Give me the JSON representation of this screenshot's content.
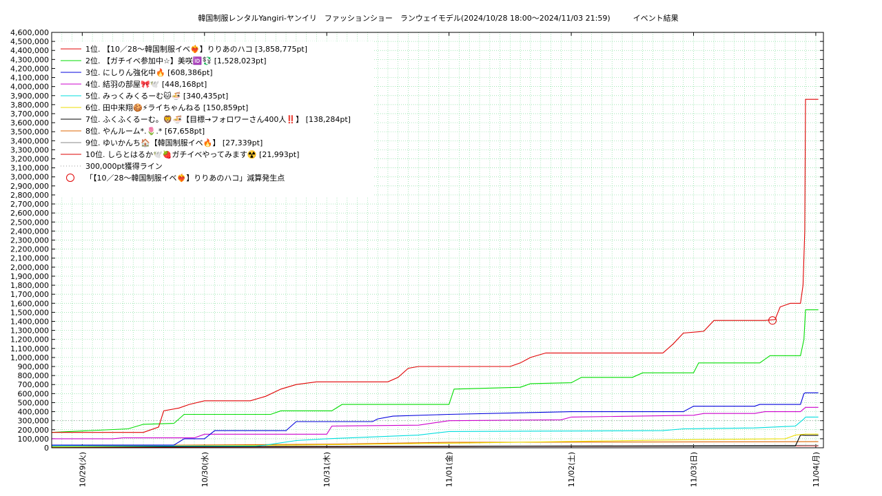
{
  "chart_data": {
    "type": "line",
    "title": "韓国制服レンタルYangiri-ヤンイリ　ファッションショー　ランウェイモデル(2024/10/28 18:00〜2024/11/03 21:59)　　　イベント結果",
    "xlabel": "",
    "ylabel": "",
    "ylim": [
      0,
      4600000
    ],
    "xlim": [
      "2024-10-28 18:00",
      "2024-11-04 01:30"
    ],
    "y_ticks": [
      0,
      100000,
      200000,
      300000,
      400000,
      500000,
      600000,
      700000,
      800000,
      900000,
      1000000,
      1100000,
      1200000,
      1300000,
      1400000,
      1500000,
      1600000,
      1700000,
      1800000,
      1900000,
      2000000,
      2100000,
      2200000,
      2300000,
      2400000,
      2500000,
      2600000,
      2700000,
      2800000,
      2900000,
      3000000,
      3100000,
      3200000,
      3300000,
      3400000,
      3500000,
      3600000,
      3700000,
      3800000,
      3900000,
      4000000,
      4100000,
      4200000,
      4300000,
      4400000,
      4500000,
      4600000
    ],
    "x_ticks": [
      {
        "t": "2024-10-29 00:00",
        "label": "10/29(火)"
      },
      {
        "t": "2024-10-30 00:00",
        "label": "10/30(水)"
      },
      {
        "t": "2024-10-31 00:00",
        "label": "10/31(木)"
      },
      {
        "t": "2024-11-01 00:00",
        "label": "11/01(金)"
      },
      {
        "t": "2024-11-02 00:00",
        "label": "11/02(土)"
      },
      {
        "t": "2024-11-03 00:00",
        "label": "11/03(日)"
      },
      {
        "t": "2024-11-04 00:00",
        "label": "11/04(月)"
      }
    ],
    "grid": true,
    "grid_color": "#7fdd9a",
    "legend_position": "top-left",
    "series": [
      {
        "name": "1位. 【10／28〜韓国制服イベ❤️‍🔥】りりあのハコ [3,858,775pt]",
        "color": "#e00000",
        "points": [
          [
            "2024-10-28 18:00",
            170000
          ],
          [
            "2024-10-29 12:00",
            170000
          ],
          [
            "2024-10-29 15:00",
            230000
          ],
          [
            "2024-10-29 16:00",
            410000
          ],
          [
            "2024-10-29 19:00",
            440000
          ],
          [
            "2024-10-29 21:00",
            480000
          ],
          [
            "2024-10-30 00:00",
            520000
          ],
          [
            "2024-10-30 09:00",
            520000
          ],
          [
            "2024-10-30 12:00",
            570000
          ],
          [
            "2024-10-30 15:00",
            650000
          ],
          [
            "2024-10-30 18:00",
            700000
          ],
          [
            "2024-10-30 22:00",
            730000
          ],
          [
            "2024-10-31 12:00",
            730000
          ],
          [
            "2024-10-31 14:00",
            780000
          ],
          [
            "2024-10-31 16:00",
            880000
          ],
          [
            "2024-10-31 18:00",
            900000
          ],
          [
            "2024-11-01 12:00",
            900000
          ],
          [
            "2024-11-01 14:00",
            940000
          ],
          [
            "2024-11-01 16:00",
            1000000
          ],
          [
            "2024-11-01 19:00",
            1050000
          ],
          [
            "2024-11-02 18:00",
            1050000
          ],
          [
            "2024-11-02 20:00",
            1150000
          ],
          [
            "2024-11-02 22:00",
            1270000
          ],
          [
            "2024-11-03 02:00",
            1290000
          ],
          [
            "2024-11-03 04:00",
            1410000
          ],
          [
            "2024-11-03 14:00",
            1410000
          ],
          [
            "2024-11-03 16:00",
            1420000
          ],
          [
            "2024-11-03 17:00",
            1560000
          ],
          [
            "2024-11-03 19:00",
            1600000
          ],
          [
            "2024-11-03 21:00",
            1600000
          ],
          [
            "2024-11-03 21:30",
            1800000
          ],
          [
            "2024-11-03 21:50",
            2400000
          ],
          [
            "2024-11-03 21:59",
            3858775
          ],
          [
            "2024-11-04 00:30",
            3858775
          ]
        ]
      },
      {
        "name": "2位. 【ガチイベ参加中☆】美咲🆔💱 [1,528,023pt]",
        "color": "#00dd00",
        "points": [
          [
            "2024-10-28 18:00",
            170000
          ],
          [
            "2024-10-29 09:00",
            210000
          ],
          [
            "2024-10-29 12:00",
            260000
          ],
          [
            "2024-10-29 18:00",
            270000
          ],
          [
            "2024-10-29 20:00",
            370000
          ],
          [
            "2024-10-30 13:00",
            370000
          ],
          [
            "2024-10-30 15:00",
            410000
          ],
          [
            "2024-10-31 01:00",
            410000
          ],
          [
            "2024-10-31 03:00",
            480000
          ],
          [
            "2024-11-01 00:00",
            480000
          ],
          [
            "2024-11-01 01:00",
            650000
          ],
          [
            "2024-11-01 14:00",
            670000
          ],
          [
            "2024-11-01 16:00",
            710000
          ],
          [
            "2024-11-02 00:00",
            720000
          ],
          [
            "2024-11-02 02:00",
            780000
          ],
          [
            "2024-11-02 12:00",
            780000
          ],
          [
            "2024-11-02 14:00",
            830000
          ],
          [
            "2024-11-03 00:00",
            830000
          ],
          [
            "2024-11-03 01:00",
            940000
          ],
          [
            "2024-11-03 13:00",
            940000
          ],
          [
            "2024-11-03 15:00",
            1020000
          ],
          [
            "2024-11-03 21:00",
            1020000
          ],
          [
            "2024-11-03 21:40",
            1200000
          ],
          [
            "2024-11-03 21:59",
            1528023
          ],
          [
            "2024-11-04 00:30",
            1528023
          ]
        ]
      },
      {
        "name": "3位. にしりん強化中🔥 [608,386pt]",
        "color": "#0000dd",
        "points": [
          [
            "2024-10-28 18:00",
            30000
          ],
          [
            "2024-10-29 18:00",
            30000
          ],
          [
            "2024-10-29 20:00",
            100000
          ],
          [
            "2024-10-30 00:00",
            100000
          ],
          [
            "2024-10-30 02:00",
            190000
          ],
          [
            "2024-10-30 16:00",
            190000
          ],
          [
            "2024-10-30 18:00",
            290000
          ],
          [
            "2024-10-31 09:00",
            290000
          ],
          [
            "2024-10-31 10:00",
            320000
          ],
          [
            "2024-10-31 13:00",
            350000
          ],
          [
            "2024-11-01 00:00",
            370000
          ],
          [
            "2024-11-02 00:00",
            400000
          ],
          [
            "2024-11-02 22:00",
            400000
          ],
          [
            "2024-11-03 00:00",
            460000
          ],
          [
            "2024-11-03 12:00",
            460000
          ],
          [
            "2024-11-03 13:00",
            480000
          ],
          [
            "2024-11-03 21:00",
            480000
          ],
          [
            "2024-11-03 21:40",
            600000
          ],
          [
            "2024-11-03 21:59",
            608386
          ],
          [
            "2024-11-04 00:30",
            608386
          ]
        ]
      },
      {
        "name": "4位. 結羽の部屋🎀🕊️ [448,168pt]",
        "color": "#cc00cc",
        "points": [
          [
            "2024-10-28 18:00",
            100000
          ],
          [
            "2024-10-29 06:00",
            100000
          ],
          [
            "2024-10-29 08:00",
            110000
          ],
          [
            "2024-10-29 22:00",
            110000
          ],
          [
            "2024-10-30 00:00",
            150000
          ],
          [
            "2024-10-31 00:00",
            150000
          ],
          [
            "2024-10-31 01:00",
            240000
          ],
          [
            "2024-10-31 18:00",
            250000
          ],
          [
            "2024-11-01 00:00",
            300000
          ],
          [
            "2024-11-01 22:00",
            310000
          ],
          [
            "2024-11-02 00:00",
            340000
          ],
          [
            "2024-11-03 00:00",
            360000
          ],
          [
            "2024-11-03 02:00",
            380000
          ],
          [
            "2024-11-03 12:00",
            380000
          ],
          [
            "2024-11-03 14:00",
            400000
          ],
          [
            "2024-11-03 21:00",
            400000
          ],
          [
            "2024-11-03 21:59",
            448168
          ],
          [
            "2024-11-04 00:30",
            448168
          ]
        ]
      },
      {
        "name": "5位. みっくみくるーむ🐱🍜 [340,435pt]",
        "color": "#00dddd",
        "points": [
          [
            "2024-10-28 18:00",
            20000
          ],
          [
            "2024-10-30 10:00",
            20000
          ],
          [
            "2024-10-30 12:00",
            30000
          ],
          [
            "2024-10-30 18:00",
            80000
          ],
          [
            "2024-10-31 00:00",
            100000
          ],
          [
            "2024-10-31 18:00",
            140000
          ],
          [
            "2024-11-01 00:00",
            180000
          ],
          [
            "2024-11-02 18:00",
            190000
          ],
          [
            "2024-11-02 22:00",
            210000
          ],
          [
            "2024-11-03 12:00",
            220000
          ],
          [
            "2024-11-03 20:00",
            240000
          ],
          [
            "2024-11-03 21:40",
            320000
          ],
          [
            "2024-11-03 21:59",
            340435
          ],
          [
            "2024-11-04 00:30",
            340435
          ]
        ]
      },
      {
        "name": "6位. 田中来翔🍪⚡ライちゃんねる [150,859pt]",
        "color": "#eedd00",
        "points": [
          [
            "2024-10-28 18:00",
            10000
          ],
          [
            "2024-10-30 18:00",
            30000
          ],
          [
            "2024-11-01 00:00",
            50000
          ],
          [
            "2024-11-02 00:00",
            70000
          ],
          [
            "2024-11-03 00:00",
            90000
          ],
          [
            "2024-11-03 18:00",
            100000
          ],
          [
            "2024-11-03 20:00",
            140000
          ],
          [
            "2024-11-03 21:59",
            150859
          ],
          [
            "2024-11-04 00:30",
            150859
          ]
        ]
      },
      {
        "name": "7位. ふくふくるーむ。🦁🍜【目標→フォロワーさん400人‼️】 [138,284pt]",
        "color": "#000000",
        "points": [
          [
            "2024-10-28 18:00",
            10000
          ],
          [
            "2024-11-03 20:00",
            20000
          ],
          [
            "2024-11-03 21:00",
            140000
          ],
          [
            "2024-11-03 21:59",
            138284
          ],
          [
            "2024-11-04 00:30",
            138284
          ]
        ]
      },
      {
        "name": "8位. やんルーム*.🌷.* [67,658pt]",
        "color": "#dd6600",
        "points": [
          [
            "2024-10-28 18:00",
            20000
          ],
          [
            "2024-10-31 00:00",
            40000
          ],
          [
            "2024-11-01 00:00",
            60000
          ],
          [
            "2024-11-04 00:30",
            67658
          ]
        ]
      },
      {
        "name": "9位. ゆいかんち🏠【韓国制服イベ🔥】 [27,339pt]",
        "color": "#888888",
        "points": [
          [
            "2024-10-28 18:00",
            10000
          ],
          [
            "2024-11-03 21:59",
            27339
          ],
          [
            "2024-11-04 00:30",
            27339
          ]
        ]
      },
      {
        "name": "10位. しらとはるか🕊️🍓ガチイベやってみます☢️ [21,993pt]",
        "color": "#dd0000",
        "points": [
          [
            "2024-10-28 18:00",
            5000
          ],
          [
            "2024-11-03 21:59",
            21993
          ],
          [
            "2024-11-04 00:30",
            21993
          ]
        ]
      }
    ],
    "reference_line": {
      "name": "300,000pt獲得ライン",
      "value": 300000,
      "color": "#999999"
    },
    "marker": {
      "name": "「【10／28〜韓国制服イベ❤️‍🔥】りりあのハコ」減算発生点",
      "t": "2024-11-03 15:30",
      "value": 1410000,
      "color": "#e00000"
    }
  }
}
